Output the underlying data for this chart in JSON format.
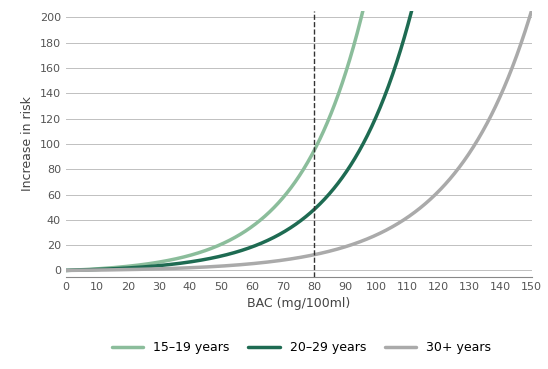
{
  "title": "",
  "xlabel": "BAC (mg/100ml)",
  "ylabel": "Increase in risk",
  "xlim": [
    0,
    150
  ],
  "ylim": [
    -5,
    205
  ],
  "xticks": [
    0,
    10,
    20,
    30,
    40,
    50,
    60,
    70,
    80,
    90,
    100,
    110,
    120,
    130,
    140,
    150
  ],
  "yticks": [
    0,
    20,
    40,
    60,
    80,
    100,
    120,
    140,
    160,
    180,
    200
  ],
  "dashed_x": 80,
  "series": [
    {
      "label": "15–19 years",
      "color": "#8BBD9B",
      "linewidth": 2.5,
      "a": 2.0,
      "b": 0.0485
    },
    {
      "label": "20–29 years",
      "color": "#1E6B52",
      "linewidth": 2.5,
      "a": 1.3,
      "b": 0.0455
    },
    {
      "label": "30+ years",
      "color": "#AAAAAA",
      "linewidth": 2.5,
      "a": 0.55,
      "b": 0.0395
    }
  ],
  "background_color": "#ffffff",
  "grid_color": "#c0c0c0",
  "legend_fontsize": 9,
  "axis_fontsize": 8,
  "label_fontsize": 9
}
